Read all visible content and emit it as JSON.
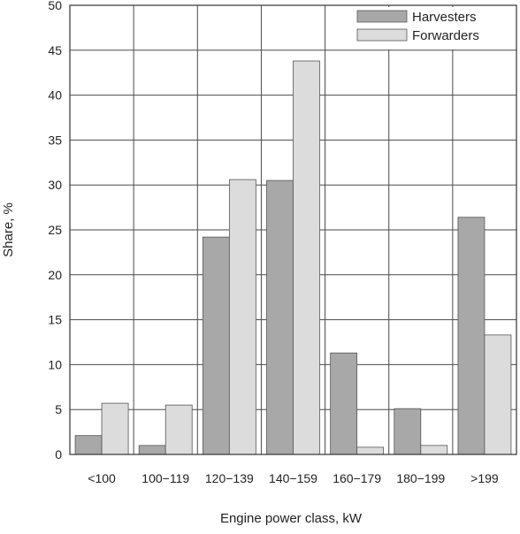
{
  "chart_data": {
    "type": "bar",
    "title": "",
    "xlabel": "Engine power class, kW",
    "ylabel": "Share, %",
    "ylim": [
      0,
      50
    ],
    "yticks": [
      0,
      5,
      10,
      15,
      20,
      25,
      30,
      35,
      40,
      45,
      50
    ],
    "grid": true,
    "legend_position": "top-right",
    "categories": [
      "<100",
      "100−119",
      "120−139",
      "140−159",
      "160−179",
      "180−199",
      ">199"
    ],
    "series": [
      {
        "name": "Harvesters",
        "color": "#a8a8a8",
        "values": [
          2.1,
          1.0,
          24.2,
          30.5,
          11.3,
          5.1,
          26.4
        ]
      },
      {
        "name": "Forwarders",
        "color": "#dcdcdc",
        "values": [
          5.7,
          5.5,
          30.6,
          43.8,
          0.8,
          1.0,
          13.3
        ]
      }
    ]
  }
}
